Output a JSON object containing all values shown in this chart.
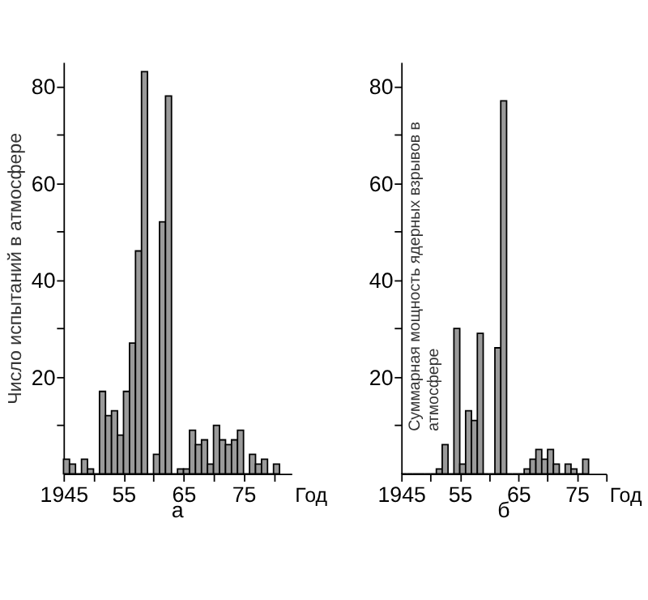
{
  "chart_data": [
    {
      "type": "histogram",
      "title": "а",
      "xlabel": "Год",
      "ylabel": "Число испытаний в атмосфере",
      "color": "#9a9a9a",
      "bins": [
        1945,
        1946,
        1947,
        1948,
        1949,
        1950,
        1951,
        1952,
        1953,
        1954,
        1955,
        1956,
        1957,
        1958,
        1959,
        1960,
        1961,
        1962,
        1963,
        1964,
        1965,
        1966,
        1967,
        1968,
        1969,
        1970,
        1971,
        1972,
        1973,
        1974,
        1975,
        1976,
        1977,
        1978,
        1979,
        1980,
        1981
      ],
      "values": [
        3,
        2,
        0,
        3,
        1,
        0,
        17,
        12,
        13,
        8,
        17,
        27,
        46,
        83,
        0,
        4,
        52,
        78,
        0,
        1,
        1,
        9,
        6,
        7,
        2,
        10,
        7,
        6,
        7,
        9,
        0,
        4,
        2,
        3,
        0,
        2
      ],
      "xlim": [
        1945,
        1983
      ],
      "xticks": [
        {
          "value": 1945,
          "label": "1945"
        },
        {
          "value": 1950,
          "label": null
        },
        {
          "value": 1955,
          "label": "55"
        },
        {
          "value": 1960,
          "label": null
        },
        {
          "value": 1965,
          "label": "65"
        },
        {
          "value": 1970,
          "label": null
        },
        {
          "value": 1975,
          "label": "75"
        },
        {
          "value": 1980,
          "label": null
        }
      ],
      "ylim": [
        0,
        85
      ],
      "yticks": [
        {
          "value": 10,
          "label": null
        },
        20,
        {
          "value": 30,
          "label": null
        },
        40,
        {
          "value": 50,
          "label": null
        },
        60,
        {
          "value": 70,
          "label": null
        },
        80
      ],
      "grid": false
    },
    {
      "type": "histogram",
      "title": "б",
      "xlabel": "Год",
      "ylabel": "Суммарная мощность ядерных взрывов в атмосфере",
      "color": "#9a9a9a",
      "bins": [
        1945,
        1946,
        1947,
        1948,
        1949,
        1950,
        1951,
        1952,
        1953,
        1954,
        1955,
        1956,
        1957,
        1958,
        1959,
        1960,
        1961,
        1962,
        1963,
        1964,
        1965,
        1966,
        1967,
        1968,
        1969,
        1970,
        1971,
        1972,
        1973,
        1974,
        1975,
        1976,
        1977
      ],
      "values": [
        0,
        0,
        0,
        0,
        0,
        0,
        1,
        6,
        0,
        30,
        2,
        13,
        11,
        29,
        0,
        0,
        26,
        77,
        0,
        0,
        0,
        1,
        3,
        5,
        3,
        5,
        2,
        0,
        2,
        1,
        0,
        3
      ],
      "xlim": [
        1945,
        1980
      ],
      "xticks": [
        {
          "value": 1945,
          "label": "1945"
        },
        {
          "value": 1950,
          "label": null
        },
        {
          "value": 1955,
          "label": "55"
        },
        {
          "value": 1960,
          "label": null
        },
        {
          "value": 1965,
          "label": "65"
        },
        {
          "value": 1970,
          "label": null
        },
        {
          "value": 1975,
          "label": "75"
        },
        {
          "value": 1980,
          "label": null
        }
      ],
      "ylim": [
        0,
        85
      ],
      "yticks": [
        {
          "value": 10,
          "label": null
        },
        20,
        {
          "value": 30,
          "label": null
        },
        40,
        {
          "value": 50,
          "label": null
        },
        60,
        {
          "value": 70,
          "label": null
        },
        80
      ],
      "grid": false
    }
  ]
}
